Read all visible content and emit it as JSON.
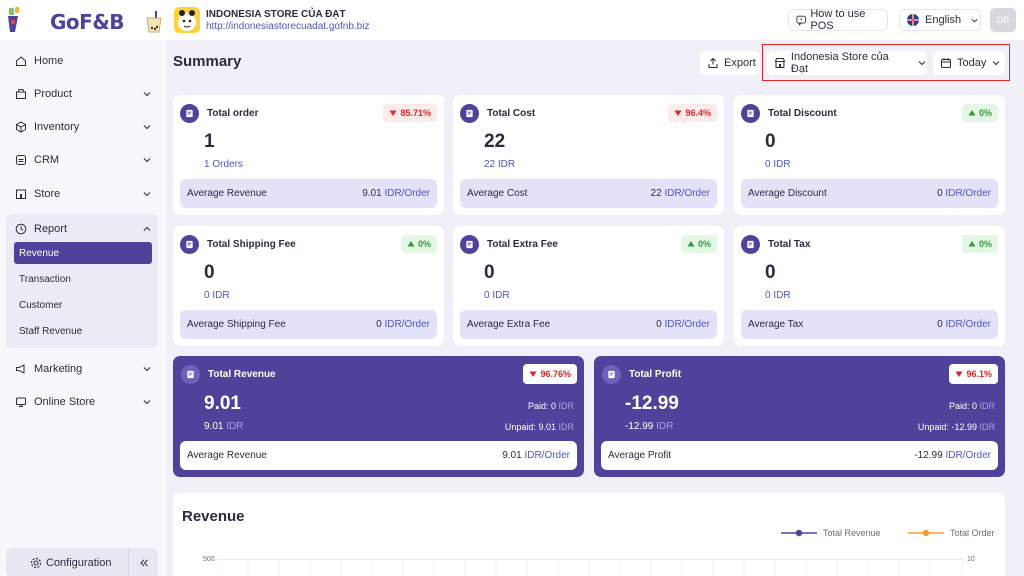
{
  "brand": {
    "name": "GoF&B"
  },
  "store": {
    "name": "INDONESIA STORE CỦA ĐẠT",
    "url": "http://indonesiastorecuadat.gofnb.biz"
  },
  "header": {
    "how_to_use": "How to use POS",
    "language": "English",
    "user_initials": "DB"
  },
  "sidebar": {
    "items": [
      {
        "label": "Home",
        "icon": "home-icon"
      },
      {
        "label": "Product",
        "icon": "box-icon"
      },
      {
        "label": "Inventory",
        "icon": "cube-icon"
      },
      {
        "label": "CRM",
        "icon": "crm-icon"
      },
      {
        "label": "Store",
        "icon": "store-icon"
      },
      {
        "label": "Report",
        "icon": "clock-icon"
      },
      {
        "label": "Marketing",
        "icon": "megaphone-icon"
      },
      {
        "label": "Online Store",
        "icon": "monitor-icon"
      }
    ],
    "report_subitems": [
      {
        "label": "Revenue",
        "active": true
      },
      {
        "label": "Transaction"
      },
      {
        "label": "Customer"
      },
      {
        "label": "Staff Revenue"
      }
    ],
    "configuration": "Configuration"
  },
  "main": {
    "title": "Summary",
    "export": "Export",
    "store_filter": "Indonesia Store của Đạt",
    "date_filter": "Today"
  },
  "cards": [
    {
      "title": "Total order",
      "badge": "85.71%",
      "trend": "down",
      "value": "1",
      "sub_num": "1",
      "sub_unit": "Orders",
      "foot_label": "Average Revenue",
      "foot_value": "9.01",
      "foot_unit": "IDR/Order"
    },
    {
      "title": "Total Cost",
      "badge": "96.4%",
      "trend": "down",
      "value": "22",
      "sub_num": "22",
      "sub_unit": "IDR",
      "foot_label": "Average Cost",
      "foot_value": "22",
      "foot_unit": "IDR/Order"
    },
    {
      "title": "Total Discount",
      "badge": "0%",
      "trend": "up",
      "value": "0",
      "sub_num": "0",
      "sub_unit": "IDR",
      "foot_label": "Average Discount",
      "foot_value": "0",
      "foot_unit": "IDR/Order"
    },
    {
      "title": "Total Shipping Fee",
      "badge": "0%",
      "trend": "up",
      "value": "0",
      "sub_num": "0",
      "sub_unit": "IDR",
      "foot_label": "Average Shipping Fee",
      "foot_value": "0",
      "foot_unit": "IDR/Order"
    },
    {
      "title": "Total Extra Fee",
      "badge": "0%",
      "trend": "up",
      "value": "0",
      "sub_num": "0",
      "sub_unit": "IDR",
      "foot_label": "Average Extra Fee",
      "foot_value": "0",
      "foot_unit": "IDR/Order"
    },
    {
      "title": "Total Tax",
      "badge": "0%",
      "trend": "up",
      "value": "0",
      "sub_num": "0",
      "sub_unit": "IDR",
      "foot_label": "Average Tax",
      "foot_value": "0",
      "foot_unit": "IDR/Order"
    }
  ],
  "big_cards": [
    {
      "title": "Total Revenue",
      "badge": "96.76%",
      "value": "9.01",
      "sub_num": "9.01",
      "sub_unit": "IDR",
      "paid_label": "Paid:",
      "paid_value": "0",
      "paid_unit": "IDR",
      "unpaid_label": "Unpaid:",
      "unpaid_value": "9.01",
      "unpaid_unit": "IDR",
      "foot_label": "Average Revenue",
      "foot_value": "9.01",
      "foot_unit": "IDR/Order"
    },
    {
      "title": "Total Profit",
      "badge": "96.1%",
      "value": "-12.99",
      "sub_num": "-12.99",
      "sub_unit": "IDR",
      "paid_label": "Paid:",
      "paid_value": "0",
      "paid_unit": "IDR",
      "unpaid_label": "Unpaid:",
      "unpaid_value": "-12.99",
      "unpaid_unit": "IDR",
      "foot_label": "Average Profit",
      "foot_value": "-12.99",
      "foot_unit": "IDR/Order"
    }
  ],
  "revenue_chart": {
    "title": "Revenue",
    "legend": [
      {
        "name": "Total Revenue",
        "color": "#50429b"
      },
      {
        "name": "Total Order",
        "color": "#ff9a2e"
      }
    ],
    "y_left_top": "500",
    "y_right_top": "10"
  }
}
